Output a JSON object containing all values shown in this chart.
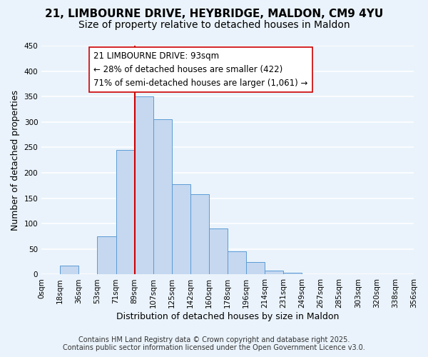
{
  "title": "21, LIMBOURNE DRIVE, HEYBRIDGE, MALDON, CM9 4YU",
  "subtitle": "Size of property relative to detached houses in Maldon",
  "xlabel": "Distribution of detached houses by size in Maldon",
  "ylabel": "Number of detached properties",
  "bin_labels": [
    "0sqm",
    "18sqm",
    "36sqm",
    "53sqm",
    "71sqm",
    "89sqm",
    "107sqm",
    "125sqm",
    "142sqm",
    "160sqm",
    "178sqm",
    "196sqm",
    "214sqm",
    "231sqm",
    "249sqm",
    "267sqm",
    "285sqm",
    "303sqm",
    "320sqm",
    "338sqm",
    "356sqm"
  ],
  "bar_values": [
    0,
    17,
    0,
    75,
    245,
    350,
    305,
    177,
    158,
    90,
    45,
    25,
    8,
    3,
    1,
    0,
    1,
    0,
    0,
    1
  ],
  "bar_color": "#c5d8f0",
  "bar_edge_color": "#5b9bd5",
  "vline_x": 5,
  "vline_color": "#cc0000",
  "ylim": [
    0,
    450
  ],
  "yticks": [
    0,
    50,
    100,
    150,
    200,
    250,
    300,
    350,
    400,
    450
  ],
  "annotation_title": "21 LIMBOURNE DRIVE: 93sqm",
  "annotation_line1": "← 28% of detached houses are smaller (422)",
  "annotation_line2": "71% of semi-detached houses are larger (1,061) →",
  "annotation_box_color": "#ffffff",
  "annotation_box_edge": "#cc0000",
  "footer_line1": "Contains HM Land Registry data © Crown copyright and database right 2025.",
  "footer_line2": "Contains public sector information licensed under the Open Government Licence v3.0.",
  "bg_color": "#eaf3fb",
  "plot_bg_color": "#eaf3fb",
  "grid_color": "#ffffff",
  "title_fontsize": 11,
  "subtitle_fontsize": 10,
  "axis_label_fontsize": 9,
  "tick_fontsize": 7.5,
  "annotation_fontsize": 8.5,
  "footer_fontsize": 7
}
